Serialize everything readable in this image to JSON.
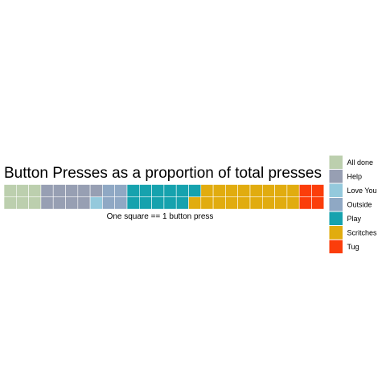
{
  "chart_data": {
    "type": "waffle",
    "title": "Button Presses as a proportion of total presses",
    "xlabel": "One square == 1 button press",
    "ylabel": "",
    "rows": 2,
    "grid": false,
    "legend_position": "right",
    "categories": [
      "All done",
      "Help",
      "Love You",
      "Outside",
      "Play",
      "Scritches",
      "Tug"
    ],
    "series": [
      {
        "name": "All done",
        "value": 6,
        "color": "#bccfae"
      },
      {
        "name": "Help",
        "value": 9,
        "color": "#979fb3"
      },
      {
        "name": "Love You",
        "value": 1,
        "color": "#94c9dc"
      },
      {
        "name": "Outside",
        "value": 4,
        "color": "#8fa8c4"
      },
      {
        "name": "Play",
        "value": 11,
        "color": "#16a2ae"
      },
      {
        "name": "Scritches",
        "value": 17,
        "color": "#e1ac0f"
      },
      {
        "name": "Tug",
        "value": 4,
        "color": "#fb3d0b"
      }
    ]
  }
}
